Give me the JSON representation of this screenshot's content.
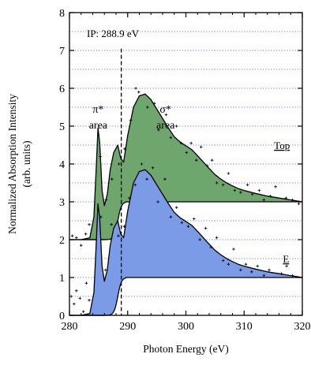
{
  "chart_data": {
    "type": "area",
    "title": "",
    "xlabel": "Photon Energy (eV)",
    "ylabel": [
      "Normalized Absorption Intensity",
      "(arb. units)"
    ],
    "xlim": [
      280,
      320
    ],
    "ylim": [
      0,
      8
    ],
    "x_ticks": [
      280,
      290,
      300,
      310,
      320
    ],
    "y_ticks": [
      0,
      1,
      2,
      3,
      4,
      5,
      6,
      7,
      8
    ],
    "grid": "horizontal dotted lines every 0.5",
    "ionization_potential": {
      "label": "IP: 288.9 eV",
      "x": 288.9
    },
    "annotations": [
      {
        "lines": [
          "π*",
          "area"
        ],
        "x": 285.2,
        "y": 5.4
      },
      {
        "lines": [
          "σ*",
          "area"
        ],
        "x": 296.5,
        "y": 5.4
      }
    ],
    "series": [
      {
        "name": "Top",
        "label_x": 316.5,
        "label_y": 4.5,
        "color": "#6ea66e",
        "baseline": 2,
        "step": {
          "x0": 288.9,
          "y": 3.0
        },
        "curve": [
          [
            280,
            2.0
          ],
          [
            282,
            2.0
          ],
          [
            283.5,
            2.05
          ],
          [
            284.2,
            2.6
          ],
          [
            284.6,
            3.9
          ],
          [
            284.9,
            4.95
          ],
          [
            285.2,
            4.55
          ],
          [
            285.6,
            3.3
          ],
          [
            286.0,
            2.9
          ],
          [
            286.5,
            3.2
          ],
          [
            287.0,
            3.85
          ],
          [
            287.6,
            4.3
          ],
          [
            288.3,
            4.5
          ],
          [
            288.8,
            4.15
          ],
          [
            289.3,
            4.05
          ],
          [
            290,
            4.75
          ],
          [
            291,
            5.5
          ],
          [
            292,
            5.8
          ],
          [
            293,
            5.85
          ],
          [
            294,
            5.7
          ],
          [
            295,
            5.45
          ],
          [
            296,
            5.2
          ],
          [
            297,
            4.95
          ],
          [
            298,
            4.72
          ],
          [
            299,
            4.58
          ],
          [
            300,
            4.48
          ],
          [
            301,
            4.38
          ],
          [
            302,
            4.22
          ],
          [
            303,
            4.05
          ],
          [
            304,
            3.88
          ],
          [
            305,
            3.72
          ],
          [
            306,
            3.6
          ],
          [
            307,
            3.5
          ],
          [
            308,
            3.42
          ],
          [
            309,
            3.35
          ],
          [
            310,
            3.3
          ],
          [
            312,
            3.22
          ],
          [
            314,
            3.15
          ],
          [
            316,
            3.1
          ],
          [
            318,
            3.05
          ],
          [
            320,
            3.0
          ]
        ],
        "points": [
          [
            280.5,
            2.1
          ],
          [
            281.2,
            2.05
          ],
          [
            282,
            1.85
          ],
          [
            282.8,
            2.15
          ],
          [
            283.4,
            2.4
          ],
          [
            285.3,
            4.2
          ],
          [
            286.3,
            3.05
          ],
          [
            287.3,
            3.6
          ],
          [
            288.5,
            4.0
          ],
          [
            289.5,
            4.4
          ],
          [
            290.5,
            5.15
          ],
          [
            291.4,
            6.0
          ],
          [
            291.9,
            5.9
          ],
          [
            293.4,
            5.5
          ],
          [
            294.6,
            5.6
          ],
          [
            295.3,
            4.9
          ],
          [
            296.6,
            5.3
          ],
          [
            297.4,
            4.7
          ],
          [
            298.4,
            5.0
          ],
          [
            299.2,
            4.55
          ],
          [
            300.1,
            4.3
          ],
          [
            300.9,
            4.55
          ],
          [
            301.8,
            4.1
          ],
          [
            302.6,
            4.45
          ],
          [
            303.7,
            3.95
          ],
          [
            304.5,
            4.1
          ],
          [
            305.3,
            3.5
          ],
          [
            306.4,
            3.45
          ],
          [
            307.3,
            3.75
          ],
          [
            308.4,
            3.3
          ],
          [
            309.4,
            3.25
          ],
          [
            310.6,
            3.45
          ],
          [
            311.4,
            3.2
          ],
          [
            312.6,
            3.3
          ],
          [
            313.4,
            3.05
          ],
          [
            314.5,
            3.15
          ],
          [
            315.4,
            3.4
          ],
          [
            317.2,
            3.1
          ],
          [
            318.3,
            3.05
          ],
          [
            319.4,
            2.95
          ]
        ]
      },
      {
        "name": "E",
        "label_x": 317.2,
        "label_y": 1.5,
        "color": "#7b9be6",
        "baseline": 0,
        "step": {
          "x0": 288.9,
          "y": 1.0
        },
        "curve": [
          [
            280,
            0.0
          ],
          [
            282,
            0.0
          ],
          [
            283.5,
            0.05
          ],
          [
            284.2,
            0.6
          ],
          [
            284.6,
            1.9
          ],
          [
            284.9,
            2.95
          ],
          [
            285.2,
            2.55
          ],
          [
            285.6,
            1.3
          ],
          [
            286.0,
            0.9
          ],
          [
            286.5,
            1.2
          ],
          [
            287.0,
            1.85
          ],
          [
            287.6,
            2.3
          ],
          [
            288.3,
            2.5
          ],
          [
            288.8,
            2.15
          ],
          [
            289.3,
            2.05
          ],
          [
            290,
            2.75
          ],
          [
            291,
            3.5
          ],
          [
            292,
            3.8
          ],
          [
            293,
            3.85
          ],
          [
            294,
            3.7
          ],
          [
            295,
            3.45
          ],
          [
            296,
            3.2
          ],
          [
            297,
            2.95
          ],
          [
            298,
            2.72
          ],
          [
            299,
            2.58
          ],
          [
            300,
            2.48
          ],
          [
            301,
            2.38
          ],
          [
            302,
            2.22
          ],
          [
            303,
            2.05
          ],
          [
            304,
            1.88
          ],
          [
            305,
            1.72
          ],
          [
            306,
            1.6
          ],
          [
            307,
            1.5
          ],
          [
            308,
            1.42
          ],
          [
            309,
            1.35
          ],
          [
            310,
            1.3
          ],
          [
            312,
            1.22
          ],
          [
            314,
            1.15
          ],
          [
            316,
            1.1
          ],
          [
            318,
            1.05
          ],
          [
            320,
            1.0
          ]
        ],
        "points": [
          [
            280.3,
            0.5
          ],
          [
            280.8,
            0.3
          ],
          [
            281.2,
            0.65
          ],
          [
            281.8,
            0.45
          ],
          [
            282.4,
            0.1
          ],
          [
            282.9,
            0.85
          ],
          [
            283.4,
            0.4
          ],
          [
            285.4,
            2.6
          ],
          [
            286.2,
            1.2
          ],
          [
            287.2,
            2.4
          ],
          [
            288.4,
            2.1
          ],
          [
            289.4,
            2.35
          ],
          [
            290.3,
            3.1
          ],
          [
            291.3,
            3.45
          ],
          [
            292.4,
            4.0
          ],
          [
            293.3,
            3.6
          ],
          [
            294.3,
            3.9
          ],
          [
            295.2,
            3.0
          ],
          [
            296.4,
            3.6
          ],
          [
            297.4,
            2.6
          ],
          [
            298.4,
            2.85
          ],
          [
            299.3,
            2.45
          ],
          [
            300.4,
            2.35
          ],
          [
            301.4,
            2.55
          ],
          [
            302.4,
            2.0
          ],
          [
            303.4,
            2.3
          ],
          [
            304.3,
            1.8
          ],
          [
            305.3,
            2.05
          ],
          [
            306.4,
            1.45
          ],
          [
            307.3,
            1.35
          ],
          [
            308.2,
            1.75
          ],
          [
            309.4,
            1.2
          ],
          [
            310.3,
            1.35
          ],
          [
            311.3,
            1.15
          ],
          [
            312.3,
            1.3
          ],
          [
            313.4,
            1.05
          ],
          [
            314.3,
            1.2
          ],
          [
            316.4,
            1.1
          ],
          [
            317.3,
            1.3
          ],
          [
            318.3,
            1.05
          ]
        ]
      }
    ]
  }
}
